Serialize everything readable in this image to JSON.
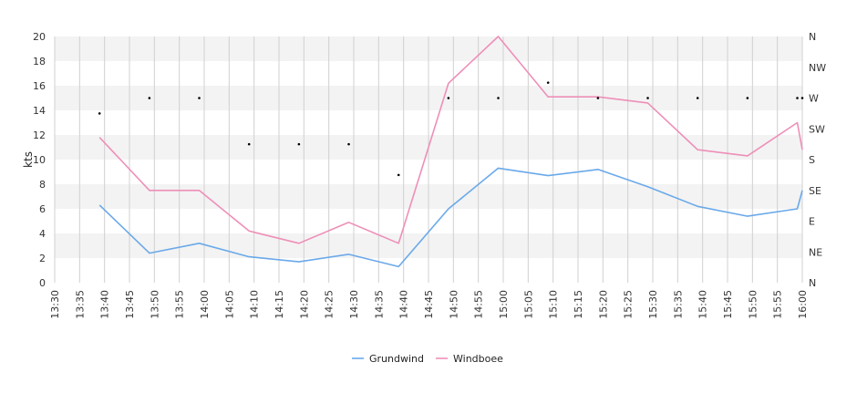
{
  "chart_data": {
    "type": "line",
    "ylabel": "kts",
    "ylim": [
      0,
      20
    ],
    "yticks": [
      "0",
      "2",
      "4",
      "6",
      "8",
      "10",
      "12",
      "14",
      "16",
      "18",
      "20"
    ],
    "xlim": [
      "13:30",
      "16:00"
    ],
    "xticks": [
      "13:30",
      "13:35",
      "13:40",
      "13:45",
      "13:50",
      "13:55",
      "14:00",
      "14:05",
      "14:10",
      "14:15",
      "14:20",
      "14:25",
      "14:30",
      "14:35",
      "14:40",
      "14:45",
      "14:50",
      "14:55",
      "15:00",
      "15:05",
      "15:10",
      "15:15",
      "15:20",
      "15:25",
      "15:30",
      "15:35",
      "15:40",
      "15:45",
      "15:50",
      "15:55",
      "16:00"
    ],
    "right_axis_ticks": [
      "N",
      "NE",
      "E",
      "SE",
      "S",
      "SW",
      "W",
      "NW",
      "N"
    ],
    "series": [
      {
        "name": "Grundwind",
        "color": "#6aa9e9",
        "x": [
          "13:39",
          "13:49",
          "13:59",
          "14:09",
          "14:19",
          "14:29",
          "14:39",
          "14:49",
          "14:59",
          "15:09",
          "15:19",
          "15:29",
          "15:39",
          "15:49",
          "15:59",
          "16:00"
        ],
        "values": [
          6.3,
          2.4,
          3.2,
          2.1,
          1.7,
          2.3,
          1.3,
          6.0,
          9.3,
          8.7,
          9.2,
          7.8,
          6.2,
          5.4,
          6.0,
          7.5
        ]
      },
      {
        "name": "Windboee",
        "color": "#ee8fb8",
        "x": [
          "13:39",
          "13:49",
          "13:59",
          "14:09",
          "14:19",
          "14:29",
          "14:39",
          "14:49",
          "14:59",
          "15:09",
          "15:19",
          "15:29",
          "15:39",
          "15:49",
          "15:59",
          "16:00"
        ],
        "values": [
          11.8,
          7.5,
          7.5,
          4.2,
          3.2,
          4.9,
          3.2,
          16.2,
          20.0,
          15.1,
          15.1,
          14.6,
          10.8,
          10.3,
          13.0,
          10.8
        ]
      }
    ],
    "direction_points": {
      "x": [
        "13:39",
        "13:49",
        "13:59",
        "14:09",
        "14:19",
        "14:29",
        "14:39",
        "14:49",
        "14:59",
        "15:09",
        "15:19",
        "15:29",
        "15:39",
        "15:49",
        "15:59",
        "16:00"
      ],
      "values": [
        "WSW",
        "W",
        "W",
        "SSW",
        "SSW",
        "SSW",
        "SSE",
        "W",
        "W",
        "WNW",
        "W",
        "W",
        "W",
        "W",
        "W",
        "W"
      ]
    },
    "grid": true,
    "legend": "bottom-center"
  }
}
